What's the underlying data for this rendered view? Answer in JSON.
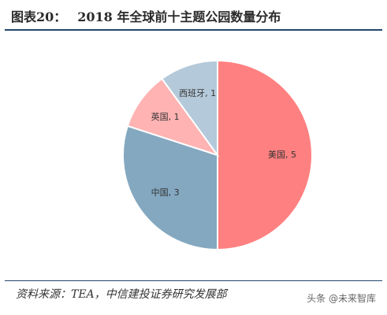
{
  "header": {
    "fig_label": "图表20：",
    "title": "2018 年全球前十主题公园数量分布"
  },
  "footer": {
    "source": "资料来源：TEA，中信建投证券研究发展部",
    "watermark": "头条 @未来智库"
  },
  "chart_data": {
    "type": "pie",
    "title": "2018 年全球前十主题公园数量分布",
    "slices": [
      {
        "label": "美国",
        "value": 5,
        "data_label": "美国, 5",
        "color": "#ff8080"
      },
      {
        "label": "中国",
        "value": 3,
        "data_label": "中国, 3",
        "color": "#84a8c0"
      },
      {
        "label": "英国",
        "value": 1,
        "data_label": "英国, 1",
        "color": "#ffb3b3"
      },
      {
        "label": "西班牙",
        "value": 1,
        "data_label": "西班牙, 1",
        "color": "#b4c9d9"
      }
    ],
    "legend": "none",
    "start_angle": "12 o'clock",
    "direction": "clockwise"
  }
}
